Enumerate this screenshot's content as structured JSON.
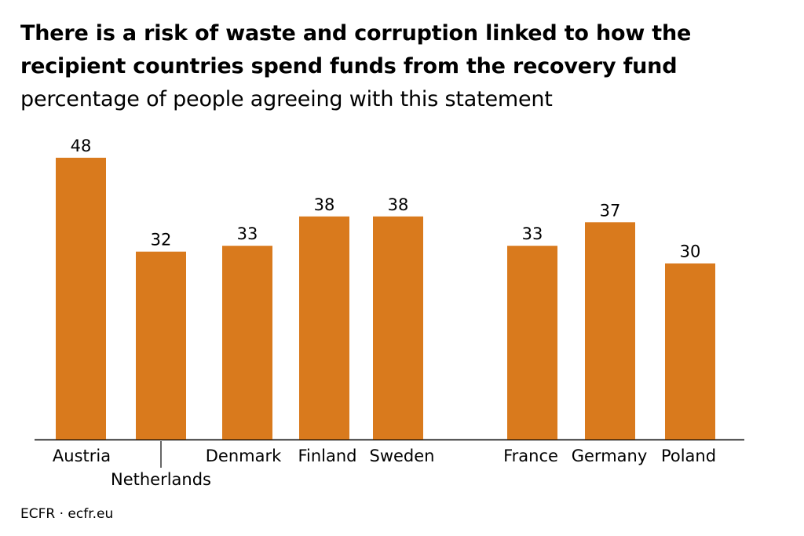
{
  "chart_data": {
    "type": "bar",
    "title": "There is a risk of waste and corruption linked to how the recipient countries spend funds from the recovery fund",
    "subtitle": "percentage of people agreeing with this statement",
    "categories": [
      "Austria",
      "Netherlands",
      "Denmark",
      "Finland",
      "Sweden",
      "France",
      "Germany",
      "Poland"
    ],
    "values": [
      48,
      32,
      33,
      38,
      38,
      33,
      37,
      30
    ],
    "data_labels": [
      "48",
      "32",
      "33",
      "38",
      "38",
      "33",
      "37",
      "30"
    ],
    "ylim": [
      0,
      48
    ],
    "grid": false,
    "legend": "none",
    "bar_color": "#d97a1d",
    "axis_color": "#000000"
  },
  "source": "ECFR · ecfr.eu"
}
